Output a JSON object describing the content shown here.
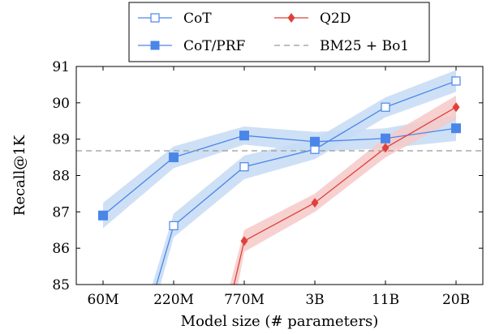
{
  "chart_data": {
    "type": "line",
    "xlabel": "Model size (# parameters)",
    "ylabel": "Recall@1K",
    "categories": [
      "60M",
      "220M",
      "770M",
      "3B",
      "11B",
      "20B"
    ],
    "ylim": [
      85,
      91
    ],
    "yticks": [
      85,
      86,
      87,
      88,
      89,
      90,
      91
    ],
    "grid": false,
    "legend_position": "top-center",
    "series": [
      {
        "name": "CoT",
        "color": "#4a86e8",
        "band_color": "#c6dbf5",
        "marker": "open-square",
        "values": [
          null,
          86.62,
          88.24,
          88.72,
          89.88,
          90.6
        ],
        "band_low": [
          null,
          86.3,
          87.9,
          88.45,
          89.6,
          90.3
        ],
        "band_high": [
          null,
          86.95,
          88.55,
          89.0,
          90.15,
          90.9
        ],
        "enter_from_category": 0.75
      },
      {
        "name": "CoT/PRF",
        "color": "#4a86e8",
        "band_color": "#c6dbf5",
        "marker": "filled-square",
        "values": [
          86.9,
          88.5,
          89.1,
          88.93,
          89.02,
          89.3
        ],
        "band_low": [
          86.55,
          88.2,
          88.85,
          88.65,
          88.75,
          88.95
        ],
        "band_high": [
          87.25,
          88.8,
          89.35,
          89.2,
          89.3,
          89.65
        ]
      },
      {
        "name": "Q2D",
        "color": "#e0403a",
        "band_color": "#f6c9c7",
        "marker": "filled-diamond",
        "values": [
          null,
          null,
          86.2,
          87.25,
          88.76,
          89.88
        ],
        "band_low": [
          null,
          null,
          85.9,
          87.0,
          88.5,
          89.55
        ],
        "band_high": [
          null,
          null,
          86.5,
          87.5,
          89.05,
          90.2
        ],
        "enter_from_category": 1.85
      },
      {
        "name": "BM25 + Bo1",
        "color": "#999999",
        "style": "dashed",
        "constant": 88.68
      }
    ]
  }
}
